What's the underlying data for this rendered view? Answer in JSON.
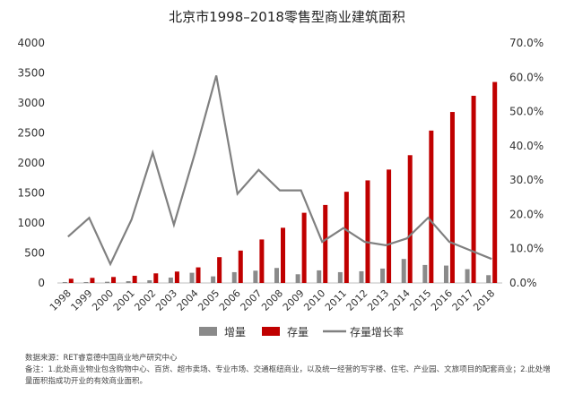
{
  "chart_data": {
    "type": "bar",
    "title": "北京市1998–2018零售型商业建筑面积",
    "categories": [
      "1998",
      "1999",
      "2000",
      "2001",
      "2002",
      "2003",
      "2004",
      "2005",
      "2006",
      "2007",
      "2008",
      "2009",
      "2010",
      "2011",
      "2012",
      "2013",
      "2014",
      "2015",
      "2016",
      "2017",
      "2018"
    ],
    "ylim_left": [
      0,
      4000
    ],
    "yticks_left": [
      "0",
      "500",
      "1000",
      "1500",
      "2000",
      "2500",
      "3000",
      "3500",
      "4000"
    ],
    "ylim_right": [
      0,
      70
    ],
    "yticks_right": [
      "0.0%",
      "10.0%",
      "20.0%",
      "30.0%",
      "40.0%",
      "50.0%",
      "60.0%",
      "70.0%"
    ],
    "grid": false,
    "legend_position": "bottom",
    "series": [
      {
        "name": "增量",
        "kind": "bar",
        "color": "#8a8a8a",
        "values": [
          15,
          15,
          20,
          30,
          45,
          90,
          170,
          110,
          180,
          205,
          250,
          145,
          210,
          180,
          195,
          240,
          400,
          300,
          290,
          230,
          130
        ]
      },
      {
        "name": "存量",
        "kind": "bar",
        "color": "#c00000",
        "values": [
          70,
          85,
          100,
          120,
          160,
          190,
          260,
          430,
          540,
          725,
          920,
          1170,
          1300,
          1520,
          1710,
          1890,
          2130,
          2540,
          2850,
          3120,
          3350
        ]
      },
      {
        "name": "存量增长率",
        "kind": "line",
        "axis": "right",
        "color": "#808080",
        "values": [
          13.5,
          19,
          5.5,
          18.5,
          38,
          17,
          38,
          60.5,
          26,
          33,
          27,
          27,
          12,
          16,
          12,
          11,
          13,
          19,
          12,
          9.5,
          7
        ]
      }
    ]
  },
  "footnote": {
    "source": "数据来源：RET睿意德中国商业地产研究中心",
    "note_line1": "备注：1.此处商业物业包含购物中心、百货、超市卖场、专业市场、交通枢纽商业，以及统一经营的写字楼、住宅、产业园、文旅项目的配套商业；2.此处增",
    "note_line2": "量面积指成功开业的有效商业面积。"
  }
}
